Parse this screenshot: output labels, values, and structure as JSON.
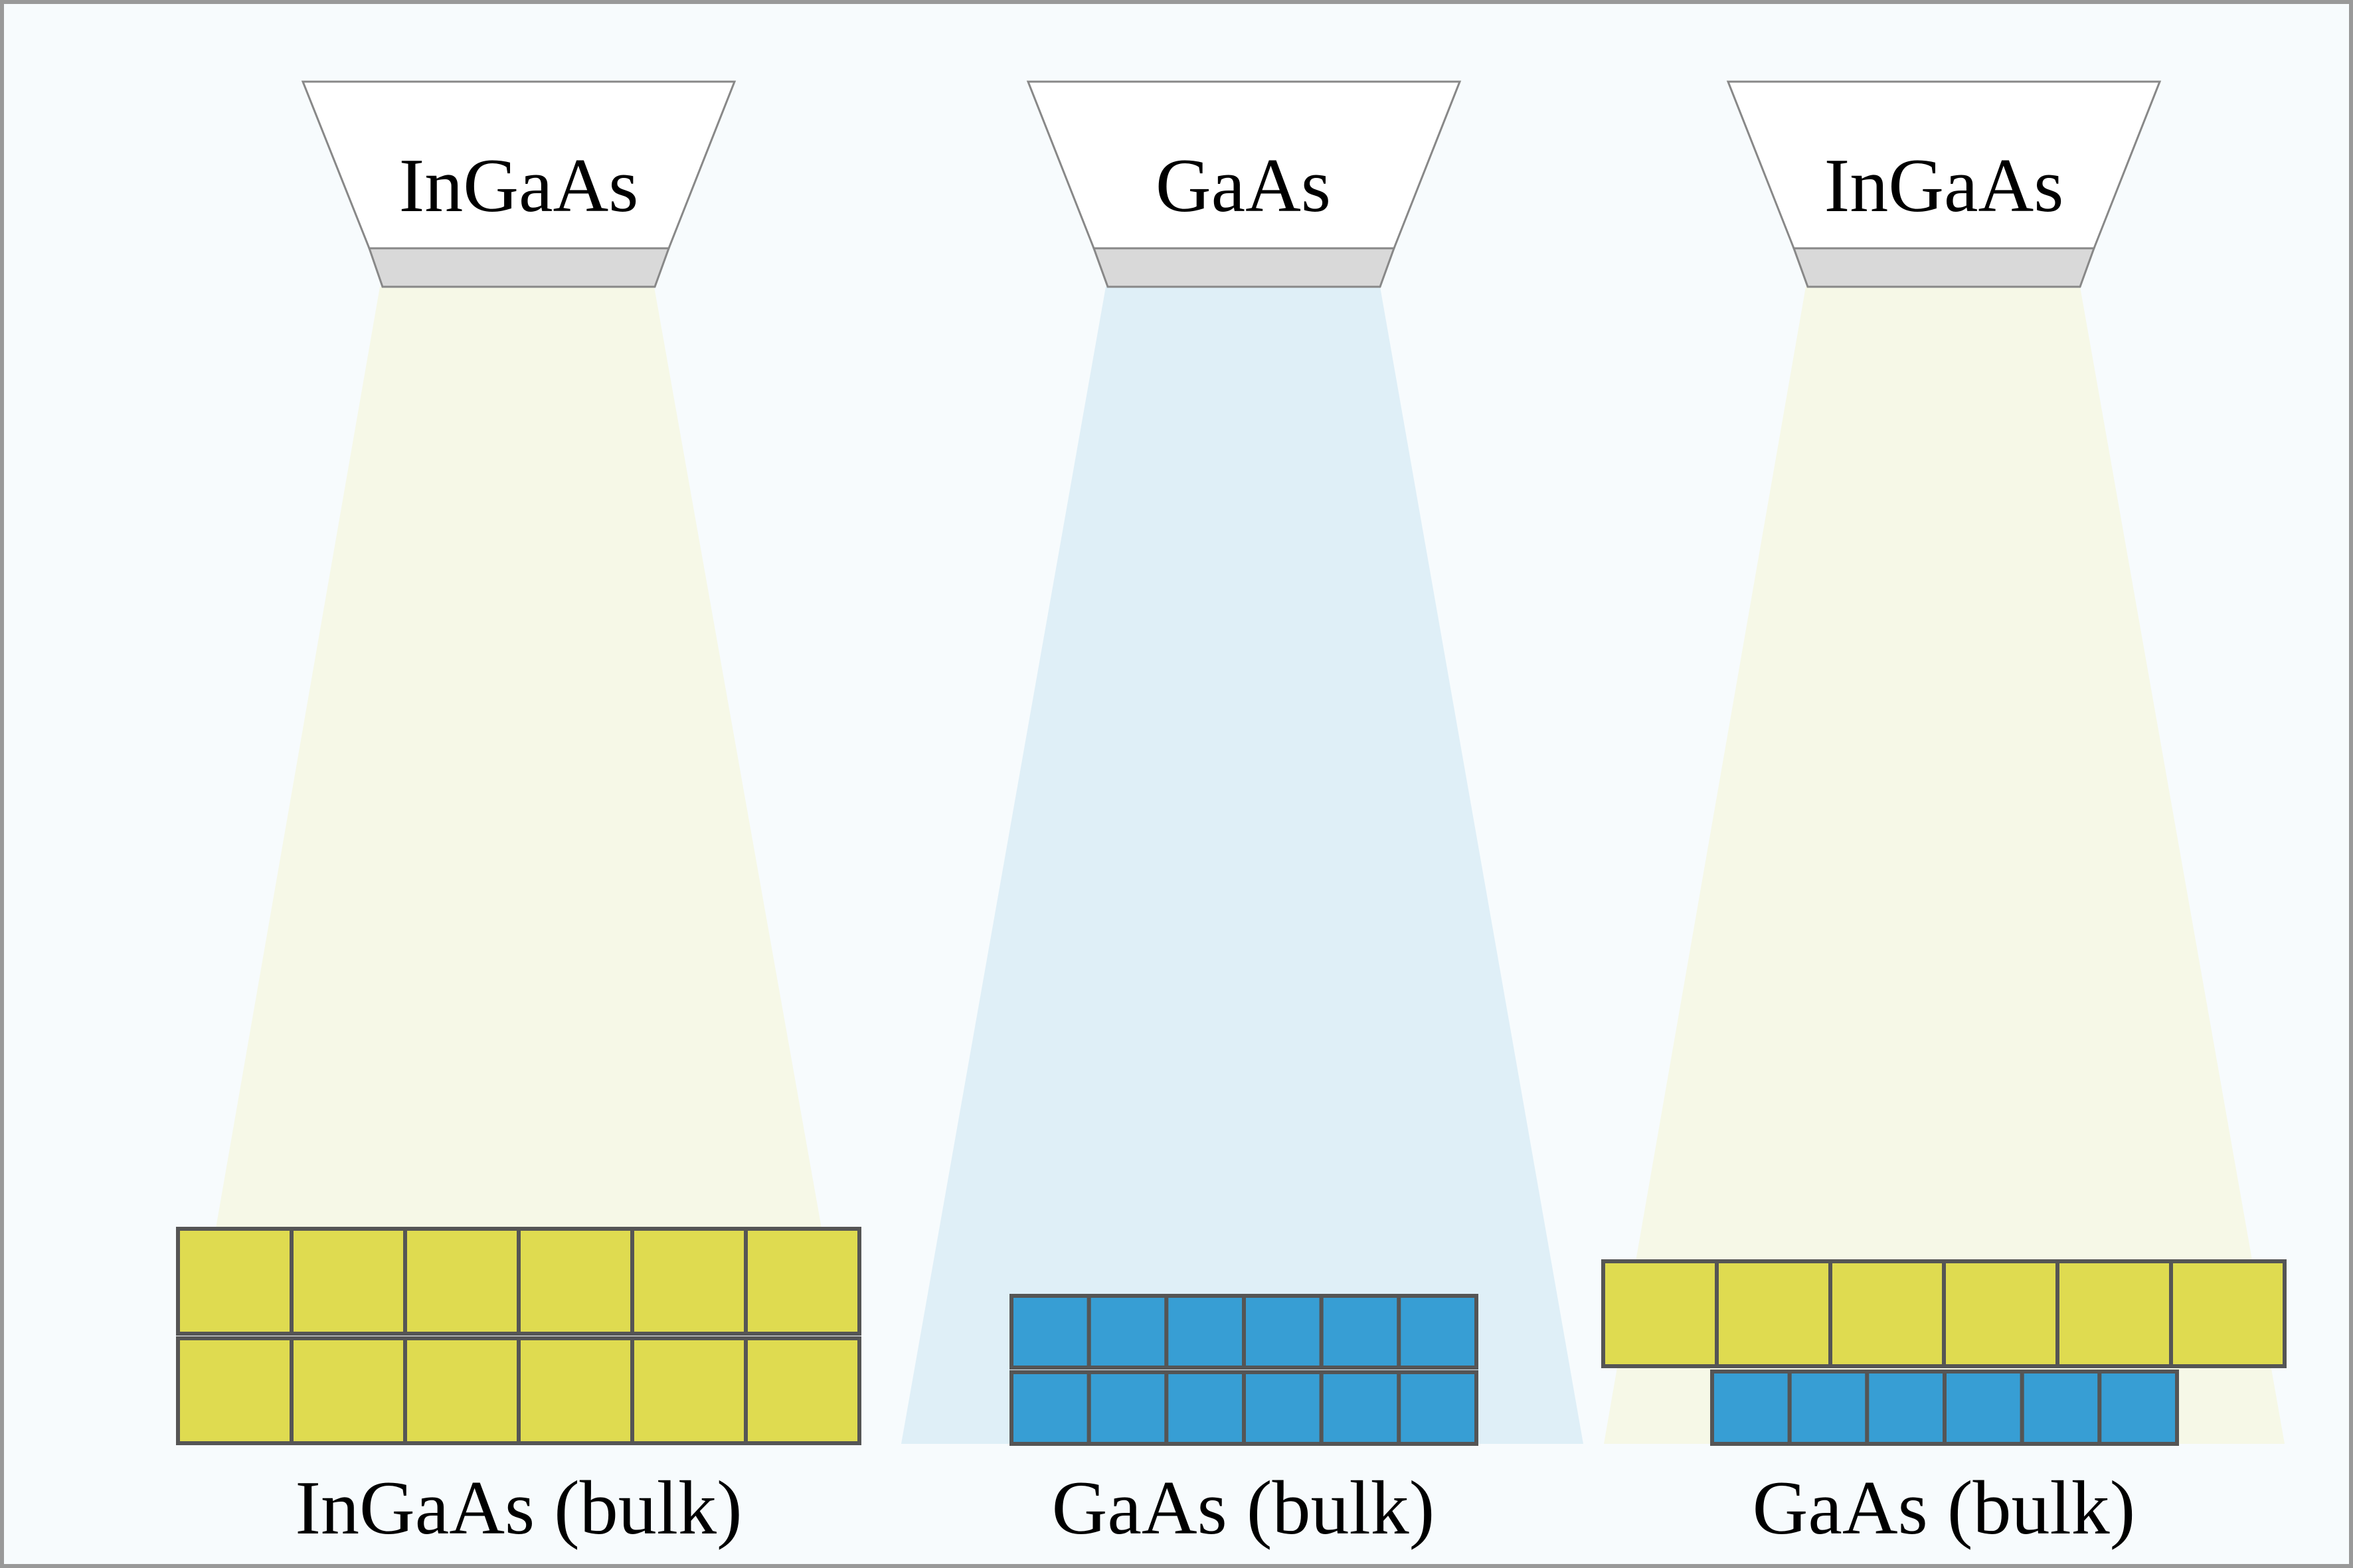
{
  "colors": {
    "background": "#f7fbfd",
    "frame": "#999999",
    "ingaas_cell": "#dfdb50",
    "ingaas_beam": "#f6f8e7",
    "gaas_cell": "#379ed4",
    "gaas_beam": "#dfeff7",
    "source_body": "#ffffff",
    "source_lip": "#d9d9d9",
    "lattice_line": "#555555"
  },
  "panels": [
    {
      "source_label": "InGaAs",
      "substrate_label": "InGaAs (bulk)",
      "beam": "ingaas",
      "layers": [
        {
          "material": "ingaas",
          "columns": 6
        },
        {
          "material": "ingaas",
          "columns": 6
        }
      ]
    },
    {
      "source_label": "GaAs",
      "substrate_label": "GaAs (bulk)",
      "beam": "gaas",
      "layers": [
        {
          "material": "gaas",
          "columns": 6
        },
        {
          "material": "gaas",
          "columns": 6
        }
      ]
    },
    {
      "source_label": "InGaAs",
      "substrate_label": "GaAs (bulk)",
      "beam": "ingaas",
      "layers": [
        {
          "material": "ingaas",
          "columns": 6
        },
        {
          "material": "gaas",
          "columns": 6
        }
      ]
    }
  ]
}
